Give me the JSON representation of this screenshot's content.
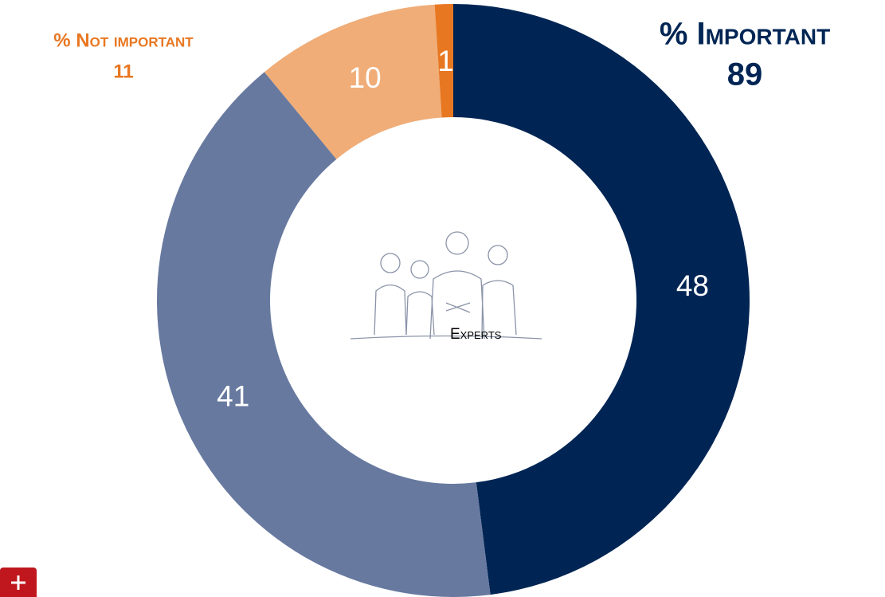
{
  "chart_data": {
    "type": "donut",
    "center_label": "Experts",
    "categories": [
      null,
      null,
      null,
      null
    ],
    "values": [
      48,
      41,
      10,
      1
    ],
    "colors": [
      "#002554",
      "#67799f",
      "#f0ad78",
      "#e87722"
    ],
    "annotations": [
      {
        "label": "% Important",
        "value": 89,
        "color": "#002554"
      },
      {
        "label": "% Not important",
        "value": 11,
        "color": "#e87722"
      }
    ]
  }
}
